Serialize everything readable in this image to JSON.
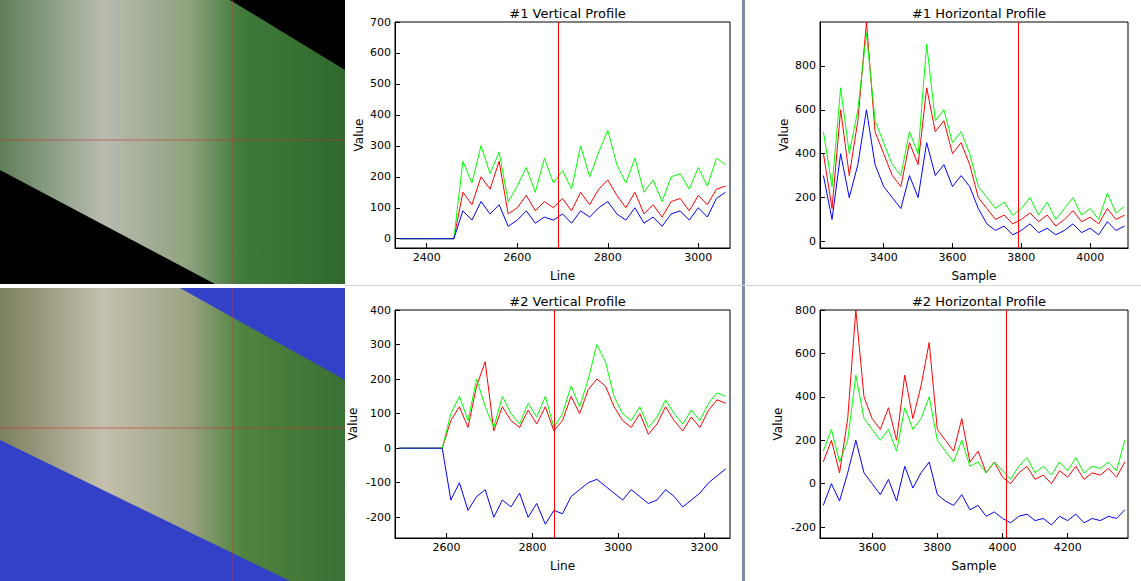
{
  "chart_data": [
    {
      "type": "line",
      "title": "#1 Vertical Profile",
      "xlabel": "Line",
      "ylabel": "Value",
      "x": [
        2340,
        2360,
        2380,
        2400,
        2420,
        2440,
        2460,
        2480,
        2500,
        2520,
        2540,
        2560,
        2580,
        2600,
        2620,
        2640,
        2660,
        2680,
        2700,
        2720,
        2740,
        2760,
        2780,
        2800,
        2820,
        2840,
        2860,
        2880,
        2900,
        2920,
        2940,
        2960,
        2980,
        3000,
        3020,
        3040,
        3060
      ],
      "series": [
        {
          "color": "#ff0000",
          "values": [
            0,
            0,
            0,
            0,
            0,
            0,
            0,
            150,
            110,
            200,
            160,
            250,
            80,
            100,
            140,
            90,
            120,
            100,
            130,
            90,
            150,
            110,
            160,
            190,
            140,
            100,
            150,
            80,
            110,
            70,
            120,
            130,
            90,
            140,
            110,
            160,
            170
          ]
        },
        {
          "color": "#00ff00",
          "values": [
            0,
            0,
            0,
            0,
            0,
            0,
            0,
            250,
            180,
            300,
            210,
            280,
            120,
            170,
            230,
            150,
            260,
            180,
            220,
            160,
            300,
            200,
            280,
            350,
            240,
            180,
            260,
            150,
            190,
            120,
            200,
            210,
            160,
            230,
            170,
            260,
            240
          ]
        },
        {
          "color": "#0000ff",
          "values": [
            0,
            0,
            0,
            0,
            0,
            0,
            0,
            90,
            60,
            120,
            80,
            110,
            40,
            60,
            90,
            50,
            70,
            60,
            80,
            50,
            90,
            70,
            100,
            120,
            80,
            60,
            100,
            50,
            70,
            40,
            80,
            90,
            60,
            100,
            70,
            130,
            150
          ]
        }
      ],
      "xlim": [
        2330,
        3070
      ],
      "xticks": [
        2400,
        2600,
        2800,
        3000
      ],
      "ylim": [
        -30,
        700
      ],
      "yticks": [
        0,
        100,
        200,
        300,
        400,
        500,
        600,
        700
      ],
      "grid": false,
      "cursor_line": 2690
    },
    {
      "type": "line",
      "title": "#1 Horizontal Profile",
      "xlabel": "Sample",
      "ylabel": "Value",
      "x": [
        3225,
        3250,
        3275,
        3300,
        3325,
        3350,
        3375,
        3400,
        3425,
        3450,
        3475,
        3500,
        3525,
        3550,
        3575,
        3600,
        3625,
        3650,
        3675,
        3700,
        3725,
        3750,
        3775,
        3800,
        3825,
        3850,
        3875,
        3900,
        3925,
        3950,
        3975,
        4000,
        4025,
        4050,
        4075,
        4100
      ],
      "series": [
        {
          "color": "#ff0000",
          "values": [
            400,
            150,
            600,
            300,
            550,
            1000,
            500,
            400,
            300,
            250,
            450,
            350,
            700,
            500,
            550,
            400,
            450,
            350,
            200,
            150,
            100,
            120,
            80,
            100,
            130,
            90,
            120,
            70,
            100,
            140,
            90,
            110,
            80,
            150,
            100,
            120
          ]
        },
        {
          "color": "#00ff00",
          "values": [
            500,
            250,
            700,
            400,
            600,
            950,
            550,
            450,
            350,
            300,
            500,
            400,
            900,
            550,
            600,
            450,
            500,
            400,
            250,
            200,
            150,
            180,
            120,
            150,
            200,
            120,
            180,
            100,
            150,
            200,
            120,
            150,
            100,
            220,
            130,
            160
          ]
        },
        {
          "color": "#0000ff",
          "values": [
            300,
            100,
            400,
            200,
            350,
            600,
            350,
            250,
            200,
            150,
            300,
            200,
            450,
            300,
            350,
            250,
            300,
            250,
            150,
            80,
            50,
            70,
            30,
            50,
            80,
            40,
            60,
            30,
            50,
            80,
            40,
            60,
            30,
            90,
            50,
            70
          ]
        }
      ],
      "xlim": [
        3215,
        4110
      ],
      "xticks": [
        3400,
        3600,
        3800,
        4000
      ],
      "ylim": [
        -30,
        1000
      ],
      "yticks": [
        0,
        200,
        400,
        600,
        800
      ],
      "grid": false,
      "cursor_line": 3790
    },
    {
      "type": "line",
      "title": "#2 Vertical Profile",
      "xlabel": "Line",
      "ylabel": "Value",
      "x": [
        2490,
        2510,
        2530,
        2550,
        2570,
        2590,
        2610,
        2630,
        2650,
        2670,
        2690,
        2710,
        2730,
        2750,
        2770,
        2790,
        2810,
        2830,
        2850,
        2870,
        2890,
        2910,
        2930,
        2950,
        2970,
        2990,
        3010,
        3030,
        3050,
        3070,
        3090,
        3110,
        3130,
        3150,
        3170,
        3190,
        3210,
        3230,
        3250
      ],
      "series": [
        {
          "color": "#ff0000",
          "values": [
            0,
            0,
            0,
            0,
            0,
            0,
            80,
            120,
            60,
            180,
            250,
            50,
            120,
            80,
            60,
            110,
            70,
            120,
            50,
            80,
            150,
            100,
            170,
            200,
            180,
            120,
            80,
            60,
            100,
            40,
            70,
            120,
            80,
            50,
            90,
            60,
            110,
            140,
            130
          ]
        },
        {
          "color": "#00ff00",
          "values": [
            0,
            0,
            0,
            0,
            0,
            0,
            100,
            150,
            80,
            200,
            120,
            60,
            150,
            100,
            70,
            130,
            90,
            150,
            60,
            100,
            180,
            120,
            200,
            300,
            250,
            150,
            100,
            80,
            120,
            60,
            90,
            140,
            100,
            70,
            110,
            80,
            130,
            160,
            150
          ]
        },
        {
          "color": "#0000ff",
          "values": [
            0,
            0,
            0,
            0,
            0,
            0,
            -150,
            -100,
            -180,
            -140,
            -120,
            -200,
            -150,
            -170,
            -130,
            -200,
            -160,
            -220,
            -180,
            -190,
            -140,
            -120,
            -100,
            -90,
            -110,
            -130,
            -150,
            -120,
            -140,
            -160,
            -150,
            -120,
            -140,
            -170,
            -150,
            -130,
            -100,
            -80,
            -60
          ]
        }
      ],
      "xlim": [
        2480,
        3260
      ],
      "xticks": [
        2600,
        2800,
        3000,
        3200
      ],
      "ylim": [
        -260,
        400
      ],
      "yticks": [
        -200,
        -100,
        0,
        100,
        200,
        300,
        400
      ],
      "grid": false,
      "cursor_line": 2850
    },
    {
      "type": "line",
      "title": "#2 Horizontal Profile",
      "xlabel": "Sample",
      "ylabel": "Value",
      "x": [
        3450,
        3475,
        3500,
        3525,
        3550,
        3575,
        3600,
        3625,
        3650,
        3675,
        3700,
        3725,
        3750,
        3775,
        3800,
        3825,
        3850,
        3875,
        3900,
        3925,
        3950,
        3975,
        4000,
        4025,
        4050,
        4075,
        4100,
        4125,
        4150,
        4175,
        4200,
        4225,
        4250,
        4275,
        4300,
        4325,
        4350,
        4375
      ],
      "series": [
        {
          "color": "#ff0000",
          "values": [
            100,
            200,
            50,
            300,
            800,
            400,
            300,
            250,
            350,
            200,
            500,
            300,
            450,
            650,
            250,
            200,
            150,
            300,
            100,
            150,
            50,
            100,
            30,
            0,
            50,
            80,
            20,
            40,
            0,
            60,
            30,
            80,
            20,
            50,
            40,
            70,
            30,
            100
          ]
        },
        {
          "color": "#00ff00",
          "values": [
            150,
            250,
            100,
            200,
            500,
            300,
            250,
            200,
            250,
            150,
            350,
            250,
            300,
            400,
            200,
            150,
            100,
            200,
            80,
            100,
            50,
            100,
            60,
            20,
            80,
            120,
            50,
            80,
            40,
            100,
            60,
            120,
            50,
            80,
            70,
            100,
            60,
            200
          ]
        },
        {
          "color": "#0000ff",
          "values": [
            -100,
            0,
            -80,
            50,
            200,
            50,
            0,
            -50,
            20,
            -80,
            80,
            -20,
            50,
            100,
            -50,
            -80,
            -100,
            -50,
            -120,
            -100,
            -150,
            -130,
            -160,
            -180,
            -150,
            -140,
            -170,
            -160,
            -190,
            -150,
            -170,
            -140,
            -180,
            -160,
            -170,
            -150,
            -160,
            -120
          ]
        }
      ],
      "xlim": [
        3440,
        4385
      ],
      "xticks": [
        3600,
        3800,
        4000,
        4200
      ],
      "ylim": [
        -250,
        800
      ],
      "yticks": [
        -200,
        0,
        200,
        400,
        600,
        800
      ],
      "grid": false,
      "cursor_line": 4010
    }
  ]
}
